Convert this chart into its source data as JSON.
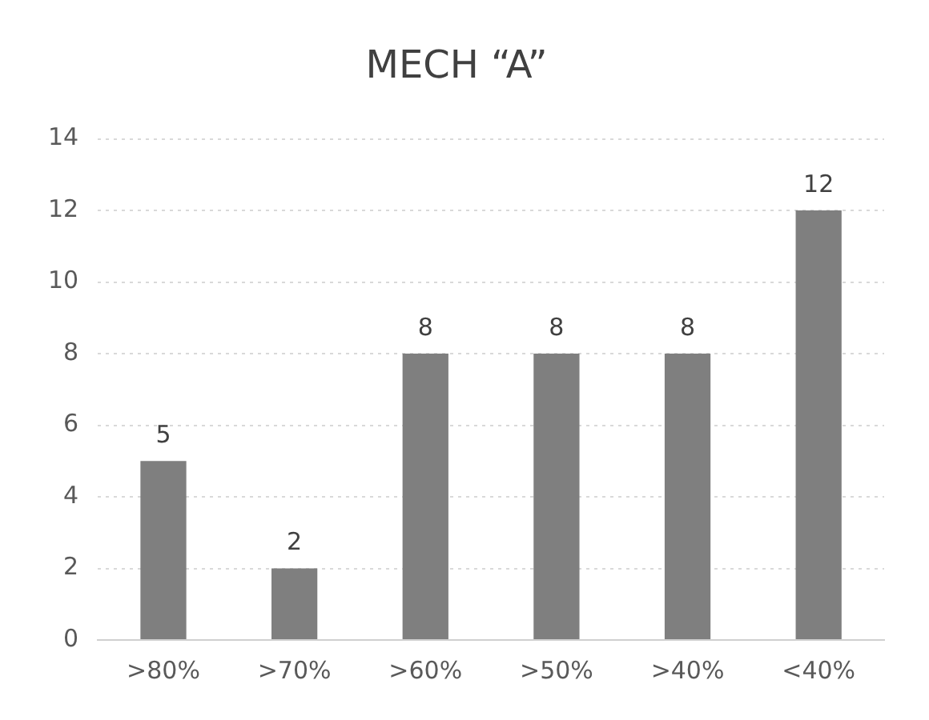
{
  "chart_data": {
    "type": "bar",
    "title": "MECH “A”",
    "categories": [
      ">80%",
      ">70%",
      ">60%",
      ">50%",
      ">40%",
      "<40%"
    ],
    "values": [
      5,
      2,
      8,
      8,
      8,
      12
    ],
    "color": "#7f7f7f",
    "ylim": [
      0,
      14
    ],
    "yticks": [
      0,
      2,
      4,
      6,
      8,
      10,
      12,
      14
    ],
    "grid": "y",
    "data_labels": true,
    "legend": false
  }
}
